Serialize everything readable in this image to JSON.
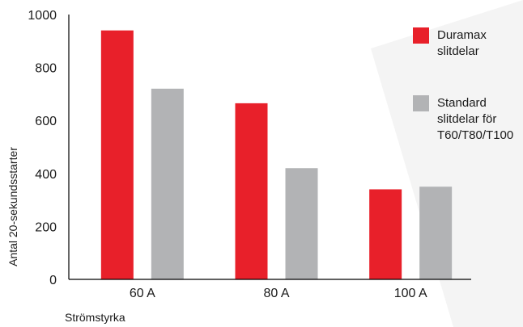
{
  "chart_data": {
    "type": "bar",
    "categories": [
      "60 A",
      "80 A",
      "100 A"
    ],
    "series": [
      {
        "name": "Duramax slitdelar",
        "legend_lines": [
          "Duramax",
          "slitdelar"
        ],
        "color": "#e8202a",
        "values": [
          940,
          665,
          340
        ]
      },
      {
        "name": "Standard slitdelar för T60/T80/T100",
        "legend_lines": [
          "Standard",
          "slitdelar för",
          "T60/T80/T100"
        ],
        "color": "#b2b3b5",
        "values": [
          720,
          420,
          350
        ]
      }
    ],
    "title": "",
    "xlabel": "Strömstyrka",
    "ylabel": "Antal 20-sekundsstarter",
    "ylim": [
      0,
      1000
    ],
    "yticks": [
      0,
      200,
      400,
      600,
      800,
      1000
    ],
    "grid": false,
    "legend_position": "top-right"
  }
}
